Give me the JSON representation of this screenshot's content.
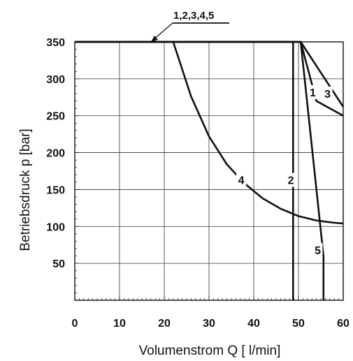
{
  "chart_data": {
    "type": "line",
    "xlabel": "Volumenstrom Q  [ l/min]",
    "ylabel": "Betriebsdruck p [bar]",
    "xlim": [
      0,
      60
    ],
    "ylim": [
      0,
      350
    ],
    "x_ticks": [
      "0",
      "10",
      "20",
      "30",
      "40",
      "50",
      "60"
    ],
    "y_ticks": [
      "50",
      "100",
      "150",
      "200",
      "250",
      "300",
      "350"
    ],
    "grid": true,
    "common_label": "1,2,3,4,5",
    "series": [
      {
        "name": "1",
        "x": [
          0,
          50.5,
          54,
          60
        ],
        "y": [
          350,
          350,
          270,
          250
        ]
      },
      {
        "name": "2",
        "x": [
          0,
          48.8,
          48.8
        ],
        "y": [
          350,
          350,
          0
        ]
      },
      {
        "name": "3",
        "x": [
          0,
          50.5,
          60
        ],
        "y": [
          350,
          350,
          262
        ]
      },
      {
        "name": "4",
        "x": [
          22,
          26,
          30,
          34,
          38,
          42,
          46,
          50,
          54,
          58,
          60
        ],
        "y": [
          350,
          276,
          222,
          184,
          158,
          138,
          124,
          114,
          108,
          105,
          104
        ]
      },
      {
        "name": "5",
        "x": [
          0,
          50.5,
          55.6,
          55.6
        ],
        "y": [
          350,
          350,
          60,
          0
        ]
      }
    ],
    "series_label_points": [
      {
        "name": "1",
        "x": 53.2,
        "y": 282
      },
      {
        "name": "3",
        "x": 56.5,
        "y": 280
      },
      {
        "name": "4",
        "x": 37.2,
        "y": 163
      },
      {
        "name": "2",
        "x": 48.3,
        "y": 163
      },
      {
        "name": "5",
        "x": 54.3,
        "y": 68
      }
    ]
  }
}
